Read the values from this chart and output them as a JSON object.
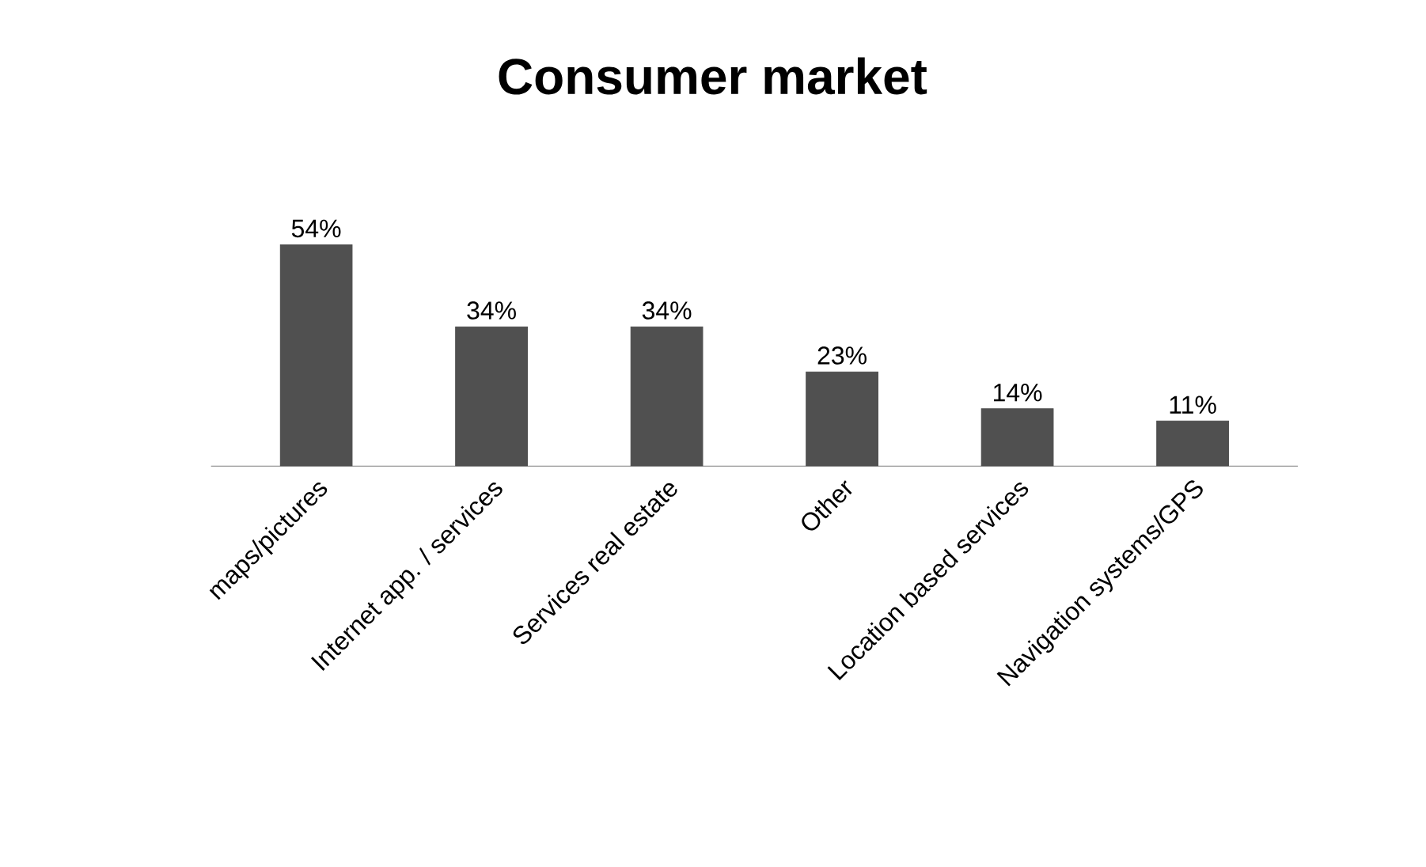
{
  "chart_data": {
    "type": "bar",
    "title": "Consumer market",
    "categories": [
      "maps/pictures",
      "Internet app. / services",
      "Services real estate",
      "Other",
      "Location based services",
      "Navigation systems/GPS"
    ],
    "values": [
      54,
      34,
      34,
      23,
      14,
      11
    ],
    "value_labels": [
      "54%",
      "34%",
      "34%",
      "23%",
      "14%",
      "11%"
    ],
    "color": "#505050"
  }
}
